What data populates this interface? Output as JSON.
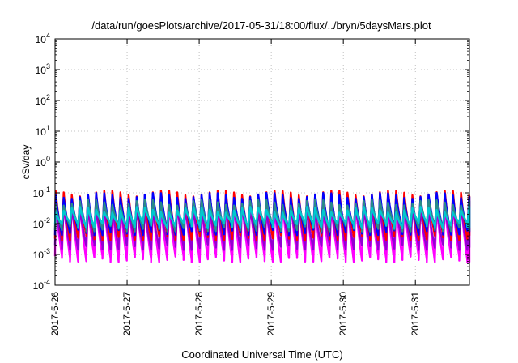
{
  "chart_data": {
    "type": "area",
    "title": "/data/run/goesPlots/archive/2017-05-31/18:00/flux/../bryn/5daysMars.plot",
    "xlabel": "Coordinated Universal Time (UTC)",
    "ylabel": "cSv/day",
    "yscale": "log",
    "ylim": [
      0.0001,
      10000
    ],
    "ytick_labels": [
      {
        "base": "10",
        "exp": "-4"
      },
      {
        "base": "10",
        "exp": "-3"
      },
      {
        "base": "10",
        "exp": "-2"
      },
      {
        "base": "10",
        "exp": "-1"
      },
      {
        "base": "10",
        "exp": "0"
      },
      {
        "base": "10",
        "exp": "1"
      },
      {
        "base": "10",
        "exp": "2"
      },
      {
        "base": "10",
        "exp": "3"
      },
      {
        "base": "10",
        "exp": "4"
      }
    ],
    "xlim": [
      "2017-05-26",
      "2017-05-31 18:00"
    ],
    "xticks": [
      "2017-5-26",
      "2017-5-27",
      "2017-5-28",
      "2017-5-29",
      "2017-5-30",
      "2017-5-31"
    ],
    "grid": true,
    "legend": "none",
    "sawtooth_period_hours": 2.7,
    "series": [
      {
        "color": "#ff00ff",
        "peak": 0.06,
        "trough": 0.0008
      },
      {
        "color": "#9400d3",
        "peak": 0.05,
        "trough": 0.002
      },
      {
        "color": "#ff0000",
        "peak": 0.12,
        "trough": 0.004
      },
      {
        "color": "#0000ff",
        "peak": 0.1,
        "trough": 0.006
      },
      {
        "color": "#2a8a8a",
        "peak": 0.06,
        "trough": 0.008
      },
      {
        "color": "#00c8d0",
        "peak": 0.035,
        "trough": 0.01
      }
    ]
  }
}
